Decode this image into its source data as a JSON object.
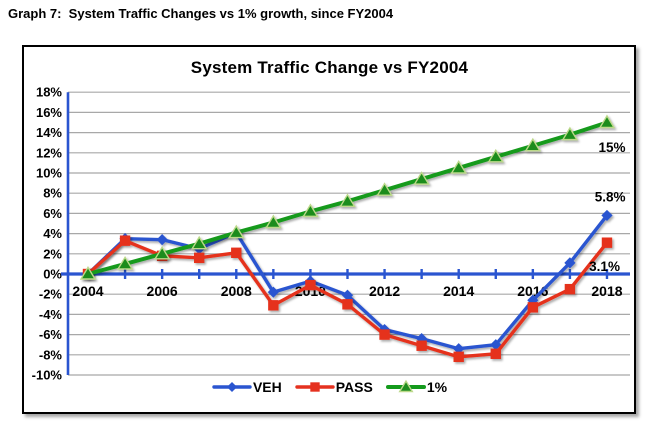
{
  "page": {
    "header": "Graph 7:  System Traffic Changes vs 1% growth, since FY2004"
  },
  "chart_data": {
    "type": "line",
    "title": "System Traffic Change vs FY2004",
    "x": [
      2004,
      2005,
      2006,
      2007,
      2008,
      2009,
      2010,
      2011,
      2012,
      2013,
      2014,
      2015,
      2016,
      2017,
      2018
    ],
    "x_tick_labels": [
      "2004",
      "2006",
      "2008",
      "2010",
      "2012",
      "2014",
      "2016",
      "2018"
    ],
    "ylim": [
      -10,
      18
    ],
    "ytick_step": 2,
    "ytick_suffix": "%",
    "grid": "horizontal",
    "legend_position": "bottom-center",
    "axis_color": "#2a55d0",
    "gridline_color": "#a8a8a8",
    "series": [
      {
        "name": "VEH",
        "color": "#2a55d0",
        "marker": "diamond",
        "values": [
          0,
          3.5,
          3.4,
          2.5,
          4.1,
          -1.8,
          -0.7,
          -2.1,
          -5.5,
          -6.4,
          -7.4,
          -7.0,
          -2.6,
          1.1,
          5.8
        ]
      },
      {
        "name": "PASS",
        "color": "#e5311f",
        "marker": "square",
        "values": [
          0,
          3.3,
          1.8,
          1.6,
          2.1,
          -3.1,
          -1.1,
          -3.0,
          -6.0,
          -7.1,
          -8.2,
          -7.9,
          -3.3,
          -1.5,
          3.1
        ]
      },
      {
        "name": "1%",
        "color": "#149a1c",
        "marker": "triangle",
        "marker_fill": "#1e8c1e",
        "marker_stroke": "#bcd98a",
        "values": [
          0,
          1.0,
          2.0,
          3.0,
          4.1,
          5.1,
          6.2,
          7.2,
          8.3,
          9.4,
          10.5,
          11.6,
          12.7,
          13.8,
          15.0
        ]
      }
    ],
    "annotations": [
      {
        "text": "15%",
        "x": 2018.5,
        "y": 12.1
      },
      {
        "text": "5.8%",
        "x": 2018.5,
        "y": 7.2
      },
      {
        "text": "3.1%",
        "x": 2018.35,
        "y": 0.3
      }
    ]
  }
}
